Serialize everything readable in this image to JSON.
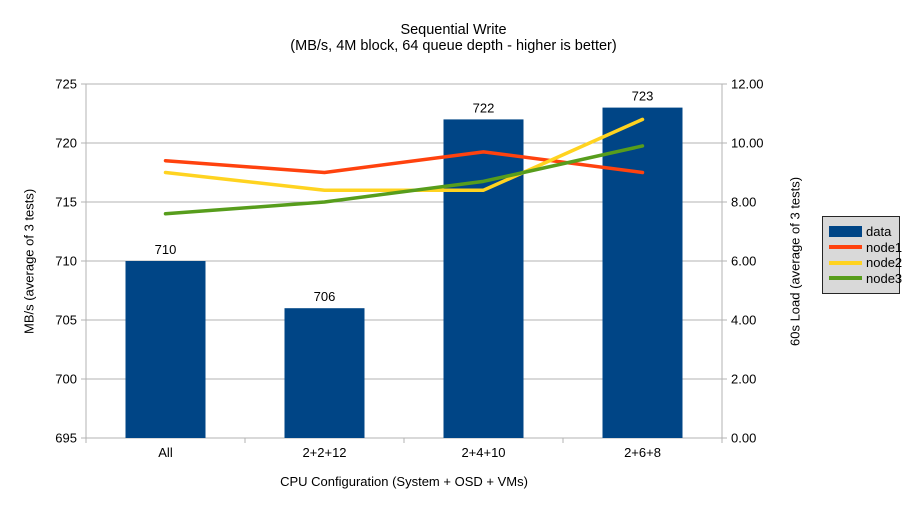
{
  "chart_data": {
    "type": "combo-bar-line",
    "title": "Sequential Write",
    "subtitle": "(MB/s, 4M block, 64 queue depth - higher is better)",
    "categories": [
      "All",
      "2+2+12",
      "2+4+10",
      "2+6+8"
    ],
    "series": [
      {
        "name": "data",
        "type": "bar",
        "axis": "left",
        "color": "#004586",
        "values": [
          710,
          706,
          722,
          723
        ],
        "data_labels": [
          "710",
          "706",
          "722",
          "723"
        ]
      },
      {
        "name": "node1",
        "type": "line",
        "axis": "right",
        "color": "#FF420E",
        "values": [
          9.4,
          9.0,
          9.7,
          9.0
        ]
      },
      {
        "name": "node2",
        "type": "line",
        "axis": "right",
        "color": "#FFD320",
        "values": [
          9.0,
          8.4,
          8.4,
          10.8
        ]
      },
      {
        "name": "node3",
        "type": "line",
        "axis": "right",
        "color": "#579D1C",
        "values": [
          7.6,
          8.0,
          8.7,
          9.9
        ]
      }
    ],
    "left_axis": {
      "label": "MB/s (average of 3 tests)",
      "min": 695,
      "max": 725,
      "ticks": [
        "695",
        "700",
        "705",
        "710",
        "715",
        "720",
        "725"
      ]
    },
    "right_axis": {
      "label": "60s Load (average of 3 tests)",
      "min": 0,
      "max": 12,
      "ticks": [
        "0.00",
        "2.00",
        "4.00",
        "6.00",
        "8.00",
        "10.00",
        "12.00"
      ]
    },
    "x_axis": {
      "label": "CPU Configuration (System + OSD + VMs)"
    },
    "legend": {
      "position": "right",
      "items": [
        {
          "label": "data",
          "swatch": "bar",
          "color": "#004586"
        },
        {
          "label": "node1",
          "swatch": "line",
          "color": "#FF420E"
        },
        {
          "label": "node2",
          "swatch": "line",
          "color": "#FFD320"
        },
        {
          "label": "node3",
          "swatch": "line",
          "color": "#579D1C"
        }
      ]
    },
    "grid": true,
    "colors": {
      "background": "#FFFFFF",
      "grid": "#B3B3B3",
      "axis": "#B3B3B3",
      "text": "#000000",
      "legend_bg": "#D9D9D9",
      "legend_border": "#262626"
    }
  }
}
